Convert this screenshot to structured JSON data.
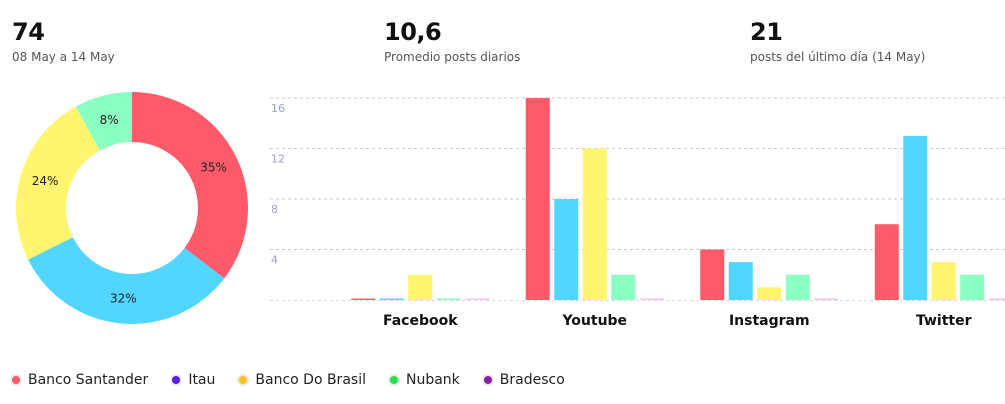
{
  "stats": [
    {
      "value": "74",
      "label": "08 May a 14 May"
    },
    {
      "value": "10,6",
      "label": "Promedio posts diarios"
    },
    {
      "value": "21",
      "label": "posts del último día (14 May)"
    }
  ],
  "colors": {
    "Banco Santander": "#FF5A6A",
    "Itau": "#52D6FF",
    "Banco Do Brasil": "#FFF56E",
    "Nubank": "#8CFFC2",
    "Bradesco": "#F5C6EE"
  },
  "legend": [
    {
      "label": "Banco Santander",
      "dot": "#FF5A6A"
    },
    {
      "label": "Itau",
      "dot": "#5A1FE0"
    },
    {
      "label": "Banco Do Brasil",
      "dot": "#FFC21F"
    },
    {
      "label": "Nubank",
      "dot": "#22E04A"
    },
    {
      "label": "Bradesco",
      "dot": "#8A1FA8"
    }
  ],
  "chart_data": [
    {
      "type": "pie",
      "slices": [
        {
          "label": "35%",
          "series": "Banco Santander",
          "value": 35
        },
        {
          "label": "32%",
          "series": "Itau",
          "value": 32
        },
        {
          "label": "24%",
          "series": "Banco Do Brasil",
          "value": 24
        },
        {
          "label": "8%",
          "series": "Nubank",
          "value": 8
        }
      ]
    },
    {
      "type": "bar",
      "categories": [
        "Facebook",
        "Youtube",
        "Instagram",
        "Twitter"
      ],
      "series": [
        {
          "name": "Banco Santander",
          "values": [
            0,
            16,
            4,
            6
          ]
        },
        {
          "name": "Itau",
          "values": [
            0,
            8,
            3,
            13
          ]
        },
        {
          "name": "Banco Do Brasil",
          "values": [
            2,
            12,
            1,
            3
          ]
        },
        {
          "name": "Nubank",
          "values": [
            0,
            2,
            2,
            2
          ]
        },
        {
          "name": "Bradesco",
          "values": [
            0,
            0,
            0,
            0
          ]
        }
      ],
      "yticks": [
        "4",
        "8",
        "12",
        "16"
      ],
      "ylim": [
        0,
        16
      ],
      "grid": true
    }
  ]
}
